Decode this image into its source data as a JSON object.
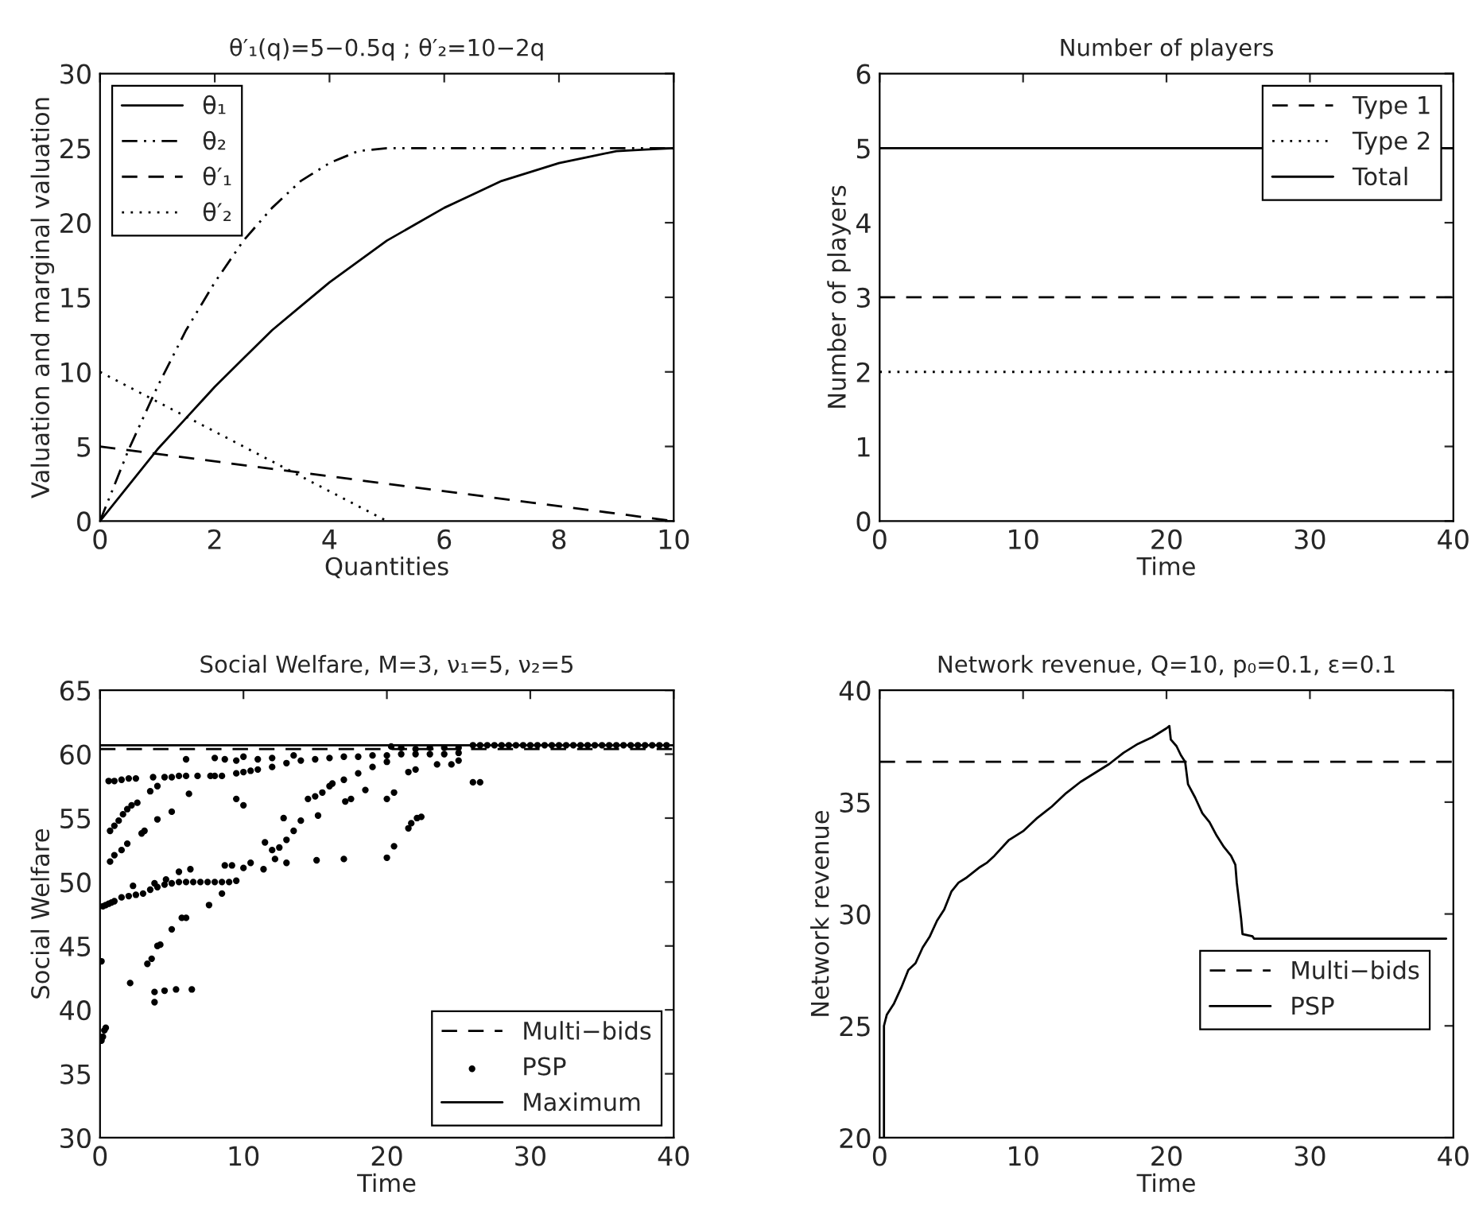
{
  "chart_data": [
    {
      "type": "line",
      "title": "θ′₁(q)=5−0.5q ; θ′₂=10−2q",
      "xlabel": "Quantities",
      "ylabel": "Valuation and marginal valuation",
      "xlim": [
        0,
        10
      ],
      "ylim": [
        0,
        30
      ],
      "xticks": [
        0,
        2,
        4,
        6,
        8,
        10
      ],
      "yticks": [
        0,
        5,
        10,
        15,
        20,
        25,
        30
      ],
      "legend": "top left",
      "grid": false,
      "series": [
        {
          "name": "θ₁",
          "color": "#000000",
          "line_style": "solid",
          "x": [
            0,
            0.5,
            1,
            1.5,
            2,
            2.5,
            3,
            3.5,
            4,
            4.5,
            5,
            5.5,
            6,
            6.5,
            7,
            7.5,
            8,
            8.5,
            9,
            9.5,
            10
          ],
          "values": [
            0,
            2.4,
            4.8,
            6.9,
            9,
            10.9,
            12.8,
            14.4,
            16,
            17.4,
            18.8,
            19.9,
            21,
            21.9,
            22.8,
            23.4,
            24,
            24.4,
            24.8,
            24.9,
            25
          ]
        },
        {
          "name": "θ₂",
          "color": "#000000",
          "line_style": "dashdot",
          "x": [
            0,
            0.5,
            1,
            1.5,
            2,
            2.5,
            3,
            3.5,
            4,
            4.5,
            5,
            10
          ],
          "values": [
            0,
            4.8,
            9,
            12.8,
            16,
            18.8,
            21,
            22.8,
            24,
            24.8,
            25,
            25
          ]
        },
        {
          "name": "θ′₁",
          "color": "#000000",
          "line_style": "dashed",
          "x": [
            0,
            10
          ],
          "values": [
            5,
            0
          ]
        },
        {
          "name": "θ′₂",
          "color": "#000000",
          "line_style": "dotted",
          "x": [
            0,
            5
          ],
          "values": [
            10,
            0
          ]
        }
      ]
    },
    {
      "type": "line",
      "title": "Number of players",
      "xlabel": "Time",
      "ylabel": "Number of players",
      "xlim": [
        0,
        40
      ],
      "ylim": [
        0,
        6
      ],
      "xticks": [
        0,
        10,
        20,
        30,
        40
      ],
      "yticks": [
        0,
        1,
        2,
        3,
        4,
        5,
        6
      ],
      "legend": "top right",
      "grid": false,
      "series": [
        {
          "name": "Type 1",
          "color": "#000000",
          "line_style": "dashed",
          "x": [
            0,
            40
          ],
          "values": [
            3,
            3
          ]
        },
        {
          "name": "Type 2",
          "color": "#000000",
          "line_style": "dotted",
          "x": [
            0,
            40
          ],
          "values": [
            2,
            2
          ]
        },
        {
          "name": "Total",
          "color": "#000000",
          "line_style": "solid",
          "x": [
            0,
            40
          ],
          "values": [
            5,
            5
          ]
        }
      ]
    },
    {
      "type": "scatter",
      "title": "Social Welfare, M=3, ν₁=5, ν₂=5",
      "xlabel": "Time",
      "ylabel": "Social Welfare",
      "xlim": [
        0,
        40
      ],
      "ylim": [
        30,
        65
      ],
      "xticks": [
        0,
        10,
        20,
        30,
        40
      ],
      "yticks": [
        30,
        35,
        40,
        45,
        50,
        55,
        60,
        65
      ],
      "legend": "bottom right",
      "grid": false,
      "series": [
        {
          "name": "Multi−bids",
          "type": "line",
          "color": "#000000",
          "line_style": "dashed",
          "x": [
            0,
            40
          ],
          "values": [
            60.4,
            60.4
          ]
        },
        {
          "name": "PSP",
          "type": "scatter",
          "color": "#000000",
          "marker": "circle",
          "x": [
            0.1,
            0.1,
            0.2,
            0.3,
            0.4,
            0.2,
            0.4,
            0.6,
            0.8,
            1,
            1.5,
            2,
            2.5,
            3,
            3.5,
            4,
            4.5,
            5,
            5.5,
            6,
            6.5,
            7,
            7.5,
            8,
            8.5,
            9,
            9.5,
            0.6,
            1,
            1.5,
            2,
            2.5,
            3.7,
            4.5,
            5,
            5.5,
            6,
            6.8,
            8,
            8.5,
            9.5,
            10,
            10.5,
            11,
            12,
            13,
            14,
            15,
            16,
            17,
            18,
            19,
            20,
            21,
            22,
            23,
            24,
            25,
            0.7,
            1,
            1.3,
            1.6,
            1.9,
            2.2,
            2.6,
            3.5,
            4,
            0.7,
            1,
            1.5,
            1.9,
            2.9,
            3.1,
            4,
            5,
            6.2,
            7.7,
            8.7,
            6,
            2.1,
            3.3,
            3.6,
            4,
            4.2,
            5,
            5.7,
            6,
            7.6,
            8.5,
            9.2,
            10,
            10.5,
            11.5,
            12,
            12.5,
            13,
            13.5,
            14,
            14.5,
            15,
            15.5,
            16,
            17,
            18,
            19,
            20,
            3.8,
            3.8,
            4.5,
            5.3,
            6.4,
            2.3,
            3.8,
            4.6,
            5.5,
            6.3,
            8.7,
            11.4,
            12.2,
            13,
            15.1,
            17,
            20,
            20.5,
            21.5,
            21.7,
            22.1,
            22.4,
            9.5,
            10,
            12.8,
            15.2,
            16.2,
            17.1,
            17.5,
            18.5,
            20,
            20.5,
            21.5,
            22,
            23.5,
            24.5,
            25,
            8,
            9.5,
            10,
            11,
            12,
            13.5,
            20.3,
            21,
            22,
            23,
            24,
            25,
            26,
            26.5,
            26,
            26.5,
            27,
            27.5,
            28,
            28.5,
            29,
            29.5,
            30,
            30.5,
            31,
            31.5,
            32,
            32.5,
            33,
            33.5,
            34,
            34.5,
            35,
            35.5,
            36,
            36.5,
            37,
            37.5,
            38,
            38.5,
            39,
            39.5
          ],
          "values": [
            43.8,
            37.6,
            37.9,
            38.4,
            38.6,
            48.1,
            48.2,
            48.3,
            48.4,
            48.5,
            48.8,
            48.9,
            49,
            49.1,
            49.4,
            49.6,
            49.8,
            49.9,
            50,
            50,
            50,
            50,
            50,
            50,
            50,
            50,
            50.1,
            57.9,
            57.9,
            58,
            58.1,
            58.1,
            58.2,
            58.2,
            58.2,
            58.3,
            58.3,
            58.3,
            58.3,
            58.3,
            58.5,
            58.6,
            58.7,
            58.8,
            59,
            59.3,
            59.5,
            59.6,
            59.7,
            59.8,
            59.8,
            59.9,
            59.9,
            60,
            60,
            60,
            60,
            60.1,
            54,
            54.4,
            54.8,
            55.3,
            55.7,
            56,
            56.2,
            57.1,
            57.5,
            51.6,
            52.1,
            52.5,
            53,
            53.8,
            54,
            54.9,
            55.5,
            56.9,
            58.3,
            59.6,
            59.6,
            42.1,
            43.6,
            44,
            45,
            45.1,
            46.3,
            47.2,
            47.2,
            48.2,
            49.1,
            51.3,
            51.1,
            51.5,
            53.1,
            52.5,
            52.7,
            53.3,
            54,
            54.8,
            56.5,
            56.7,
            57,
            57.5,
            58,
            58.5,
            59,
            59.4,
            41.4,
            40.6,
            41.5,
            41.6,
            41.6,
            49.7,
            49.9,
            50.2,
            50.8,
            51,
            51.3,
            51,
            51.8,
            51.5,
            51.7,
            51.8,
            51.9,
            52.8,
            54.2,
            54.6,
            55,
            55.1,
            56.5,
            56,
            55,
            55.2,
            57.7,
            56.3,
            56.5,
            57.2,
            56.5,
            57,
            58.6,
            58.8,
            59.2,
            59.2,
            59.5,
            59.7,
            59.5,
            59.8,
            59.6,
            59.7,
            59.9,
            60.6,
            60.5,
            60.4,
            60.5,
            60.5,
            60.5,
            57.8,
            57.8,
            60.7,
            60.7,
            60.7,
            60.7,
            60.7,
            60.7,
            60.7,
            60.7,
            60.7,
            60.7,
            60.7,
            60.7,
            60.7,
            60.7,
            60.7,
            60.7,
            60.7,
            60.7,
            60.7,
            60.7,
            60.7,
            60.7,
            60.7,
            60.7,
            60.7,
            60.7,
            60.7,
            60.7
          ]
        },
        {
          "name": "Maximum",
          "type": "line",
          "color": "#000000",
          "line_style": "solid",
          "x": [
            0,
            40
          ],
          "values": [
            60.7,
            60.7
          ]
        }
      ]
    },
    {
      "type": "line",
      "title": "Network revenue, Q=10, p₀=0.1, ε=0.1",
      "xlabel": "Time",
      "ylabel": "Network revenue",
      "xlim": [
        0,
        40
      ],
      "ylim": [
        20,
        40
      ],
      "xticks": [
        0,
        10,
        20,
        30,
        40
      ],
      "yticks": [
        20,
        25,
        30,
        35,
        40
      ],
      "legend": "right",
      "grid": false,
      "series": [
        {
          "name": "Multi−bids",
          "color": "#000000",
          "line_style": "dashed",
          "x": [
            0,
            40
          ],
          "values": [
            36.8,
            36.8
          ]
        },
        {
          "name": "PSP",
          "color": "#000000",
          "line_style": "solid",
          "x": [
            0.3,
            0.3,
            0.5,
            1,
            1.5,
            2,
            2.5,
            3,
            3.5,
            4,
            4.5,
            5,
            5.5,
            6,
            7,
            7.5,
            8,
            9,
            10,
            11,
            12,
            13,
            14,
            15,
            16,
            17,
            18,
            19,
            20,
            20.2,
            20.3,
            20.7,
            21,
            21.3,
            21.5,
            22,
            22.5,
            23,
            23.5,
            24,
            24.5,
            24.8,
            24.9,
            25.2,
            25.3,
            26,
            26.1,
            39.5
          ],
          "values": [
            20,
            25,
            25.5,
            26,
            26.7,
            27.5,
            27.8,
            28.5,
            29,
            29.7,
            30.2,
            31,
            31.4,
            31.6,
            32.1,
            32.3,
            32.6,
            33.3,
            33.7,
            34.3,
            34.8,
            35.4,
            35.9,
            36.3,
            36.7,
            37.2,
            37.6,
            37.9,
            38.3,
            38.4,
            37.8,
            37.5,
            37.1,
            36.8,
            35.8,
            35.2,
            34.5,
            34.1,
            33.5,
            33,
            32.6,
            32.2,
            31.4,
            29.8,
            29.1,
            29,
            28.9,
            28.9
          ]
        }
      ]
    }
  ]
}
